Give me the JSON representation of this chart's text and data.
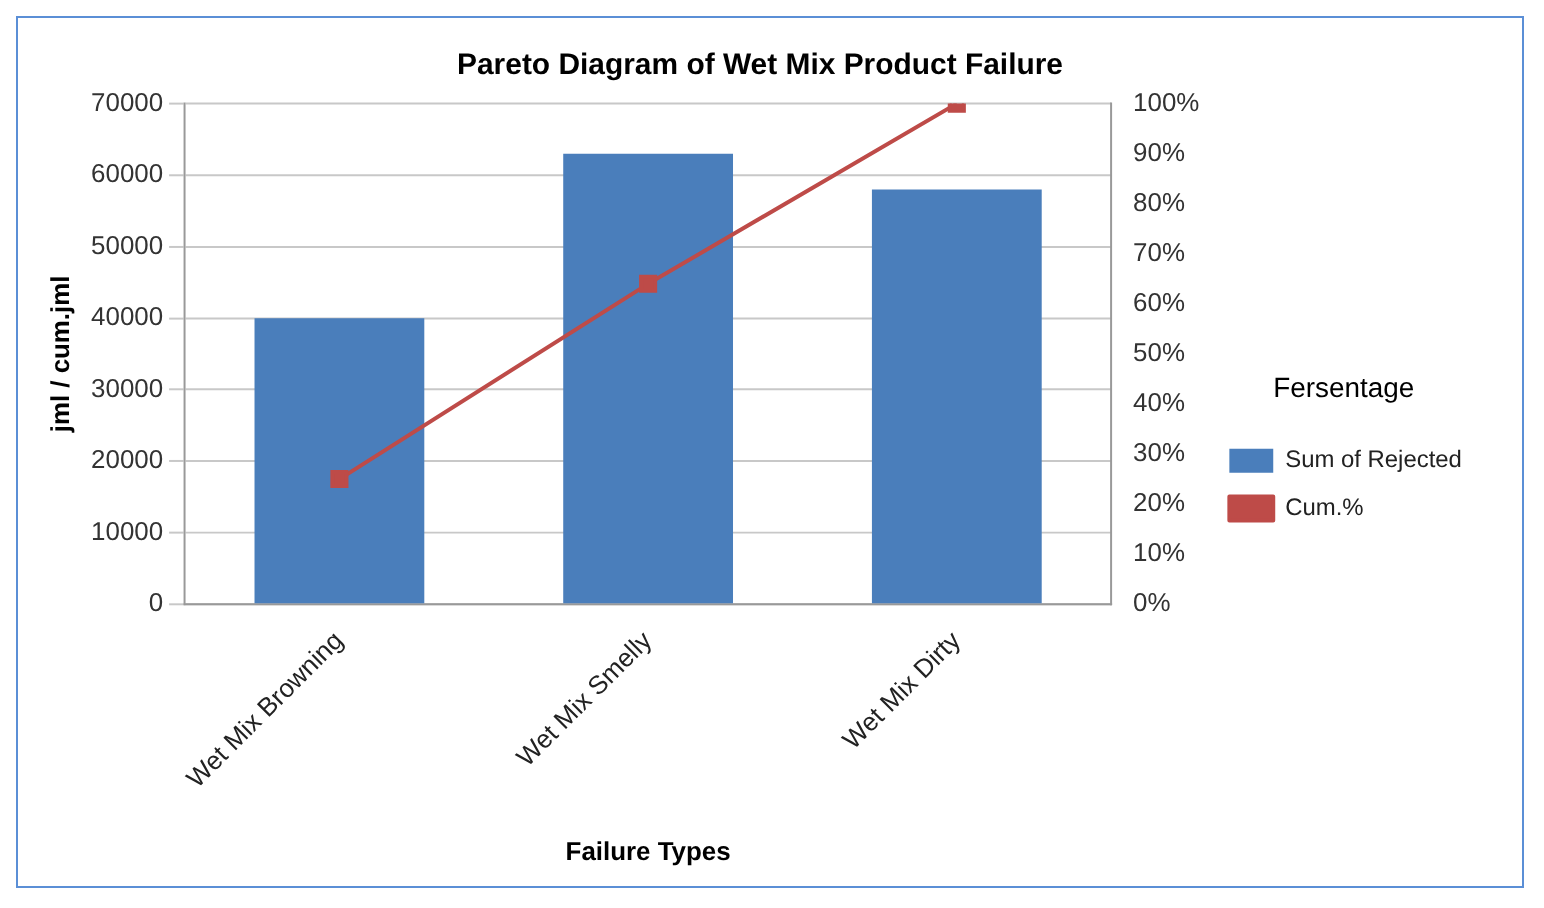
{
  "chart_data": {
    "type": "bar",
    "title": "Pareto Diagram of Wet Mix Product Failure",
    "xlabel": "Failure Types",
    "ylabel": "jml / cum.jml",
    "legend_title": "Fersentage",
    "categories": [
      "Wet Mix Browning",
      "Wet Mix Smelly",
      "Wet Mix Dirty"
    ],
    "series": [
      {
        "name": "Sum of Rejected",
        "color": "#4a7ebb",
        "values": [
          40000,
          63000,
          58000
        ]
      },
      {
        "name": "Cum.%",
        "type": "line",
        "axis": "y2",
        "color": "#be4b48",
        "marker": "square",
        "values": [
          25,
          64,
          100
        ]
      }
    ],
    "ylim": [
      0,
      70000
    ],
    "yticks": [
      0,
      10000,
      20000,
      30000,
      40000,
      50000,
      60000,
      70000
    ],
    "y2lim": [
      0,
      100
    ],
    "y2ticks": [
      {
        "value": 0,
        "label": "0%"
      },
      {
        "value": 10,
        "label": "10%"
      },
      {
        "value": 20,
        "label": "20%"
      },
      {
        "value": 30,
        "label": "30%"
      },
      {
        "value": 40,
        "label": "40%"
      },
      {
        "value": 50,
        "label": "50%"
      },
      {
        "value": 60,
        "label": "60%"
      },
      {
        "value": 70,
        "label": "70%"
      },
      {
        "value": 80,
        "label": "80%"
      },
      {
        "value": 90,
        "label": "90%"
      },
      {
        "value": 100,
        "label": "100%"
      }
    ],
    "grid": "y",
    "legend": "right"
  }
}
